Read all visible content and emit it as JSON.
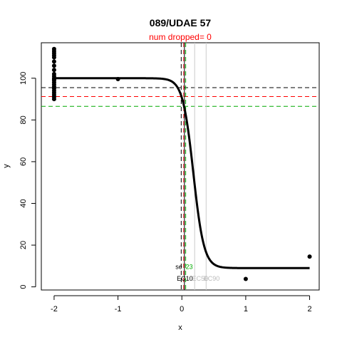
{
  "chart_data": {
    "type": "scatter",
    "title": "089/UDAE 57",
    "subtitle": "num dropped= 0",
    "xlabel": "x",
    "ylabel": "y",
    "xlim": [
      -2.2,
      2.15
    ],
    "ylim": [
      -1.5,
      117
    ],
    "xticks": [
      -2,
      -1,
      0,
      1,
      2
    ],
    "yticks": [
      0,
      20,
      40,
      60,
      80,
      100
    ],
    "grid": false,
    "legend": "none",
    "fit_curve": {
      "top": 100,
      "bottom": 9,
      "ec50": 0.18,
      "slope": 12,
      "color": "#000000"
    },
    "points": {
      "color": "#000000",
      "x": [
        -2,
        -2,
        -2,
        -2,
        -2,
        -2,
        -2,
        -2,
        -2,
        -2,
        -2,
        -2,
        -2,
        -2,
        -2,
        -2,
        -2,
        -2,
        -2,
        -2,
        -2,
        -2,
        -1,
        1,
        2
      ],
      "y": [
        114,
        113,
        112,
        111,
        110,
        108,
        106,
        104,
        102,
        101,
        100,
        99.5,
        99,
        98,
        97,
        96,
        95,
        94,
        93,
        92,
        91,
        90,
        99.6,
        3.8,
        14.5
      ]
    },
    "hlines": [
      {
        "y": 95.5,
        "color": "#000000",
        "style": "dashed"
      },
      {
        "y": 91.2,
        "color": "#ff0000",
        "style": "dashed"
      },
      {
        "y": 86.5,
        "color": "#00aa00",
        "style": "dashed"
      }
    ],
    "vlines": [
      {
        "x": -0.01,
        "color": "#000000",
        "style": "dashed"
      },
      {
        "x": 0.03,
        "color": "#ff0000",
        "style": "dashed"
      },
      {
        "x": 0.06,
        "color": "#00aa00",
        "style": "dashed"
      },
      {
        "x": 0.04,
        "color": "#000000",
        "style": "solid"
      },
      {
        "x": 0.2,
        "color": "#cccccc",
        "style": "solid"
      },
      {
        "x": 0.38,
        "color": "#cccccc",
        "style": "solid"
      }
    ],
    "annotations": [
      {
        "text": "se",
        "x": -0.1,
        "y": 8.5,
        "color": "#000000"
      },
      {
        "text": "23",
        "x": 0.06,
        "y": 8.5,
        "color": "#00aa00"
      },
      {
        "text": "EC10",
        "x": -0.08,
        "y": 3,
        "color": "#000000"
      },
      {
        "text": "EC50",
        "x": 0.16,
        "y": 3,
        "color": "#bbbbbb"
      },
      {
        "text": "EC90",
        "x": 0.34,
        "y": 3,
        "color": "#bbbbbb"
      }
    ]
  }
}
